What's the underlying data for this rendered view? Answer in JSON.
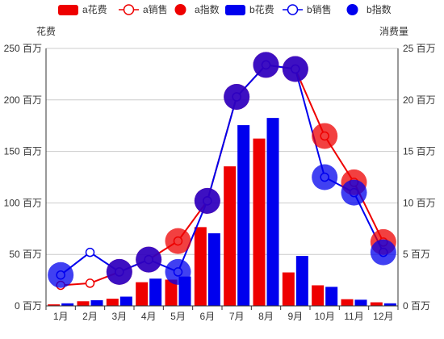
{
  "chart_data": {
    "type": "bar",
    "categories": [
      "1月",
      "2月",
      "3月",
      "4月",
      "5月",
      "6月",
      "7月",
      "8月",
      "9月",
      "10月",
      "11月",
      "12月"
    ],
    "left_axis": {
      "title": "花费",
      "ylim": [
        0,
        250
      ],
      "ticks": [
        0,
        50,
        100,
        150,
        200,
        250
      ],
      "tick_labels": [
        "0 百万",
        "50 百万",
        "100 百万",
        "150 百万",
        "200 百万",
        "250 百万"
      ]
    },
    "right_axis": {
      "title": "消费量",
      "ylim": [
        0,
        25
      ],
      "ticks": [
        0,
        5,
        10,
        15,
        20,
        25
      ],
      "tick_labels": [
        "0 百万",
        "5 百万",
        "10 百万",
        "15 百万",
        "20 百万",
        "25 百万"
      ]
    },
    "grid": true,
    "legend_position": "top",
    "series": [
      {
        "name": "a花费",
        "kind": "bar",
        "axis": "left",
        "color": "#ee0000",
        "values": [
          1.5,
          4.5,
          7,
          23,
          25.5,
          76.5,
          135.5,
          162.5,
          32.5,
          20,
          6.5,
          3.5
        ]
      },
      {
        "name": "a销售",
        "kind": "line",
        "axis": "right",
        "color": "#ee0000",
        "values": [
          2.0,
          2.2,
          3.3,
          4.5,
          6.3,
          10.2,
          20.3,
          23.4,
          23.0,
          16.5,
          12.0,
          6.2
        ]
      },
      {
        "name": "a指数",
        "kind": "bubble",
        "axis": "right",
        "color": "#ee0000",
        "values": [
          null,
          null,
          3.3,
          4.5,
          6.3,
          10.2,
          20.3,
          23.4,
          23.0,
          16.5,
          12.0,
          6.2
        ]
      },
      {
        "name": "b花费",
        "kind": "bar",
        "axis": "left",
        "color": "#0000ee",
        "values": [
          2.5,
          5.5,
          9,
          26.5,
          28.5,
          70.5,
          175.5,
          182.5,
          48.5,
          18.5,
          6,
          2.5
        ]
      },
      {
        "name": "b销售",
        "kind": "line",
        "axis": "right",
        "color": "#0000ee",
        "values": [
          3.0,
          5.2,
          3.3,
          4.5,
          3.3,
          10.2,
          20.3,
          23.4,
          23.0,
          12.5,
          11.0,
          5.2
        ]
      },
      {
        "name": "b指数",
        "kind": "bubble",
        "axis": "right",
        "color": "#0000ee",
        "values": [
          3.0,
          null,
          3.3,
          4.5,
          3.3,
          10.2,
          20.3,
          23.4,
          23.0,
          12.5,
          11.0,
          5.2
        ]
      }
    ]
  }
}
